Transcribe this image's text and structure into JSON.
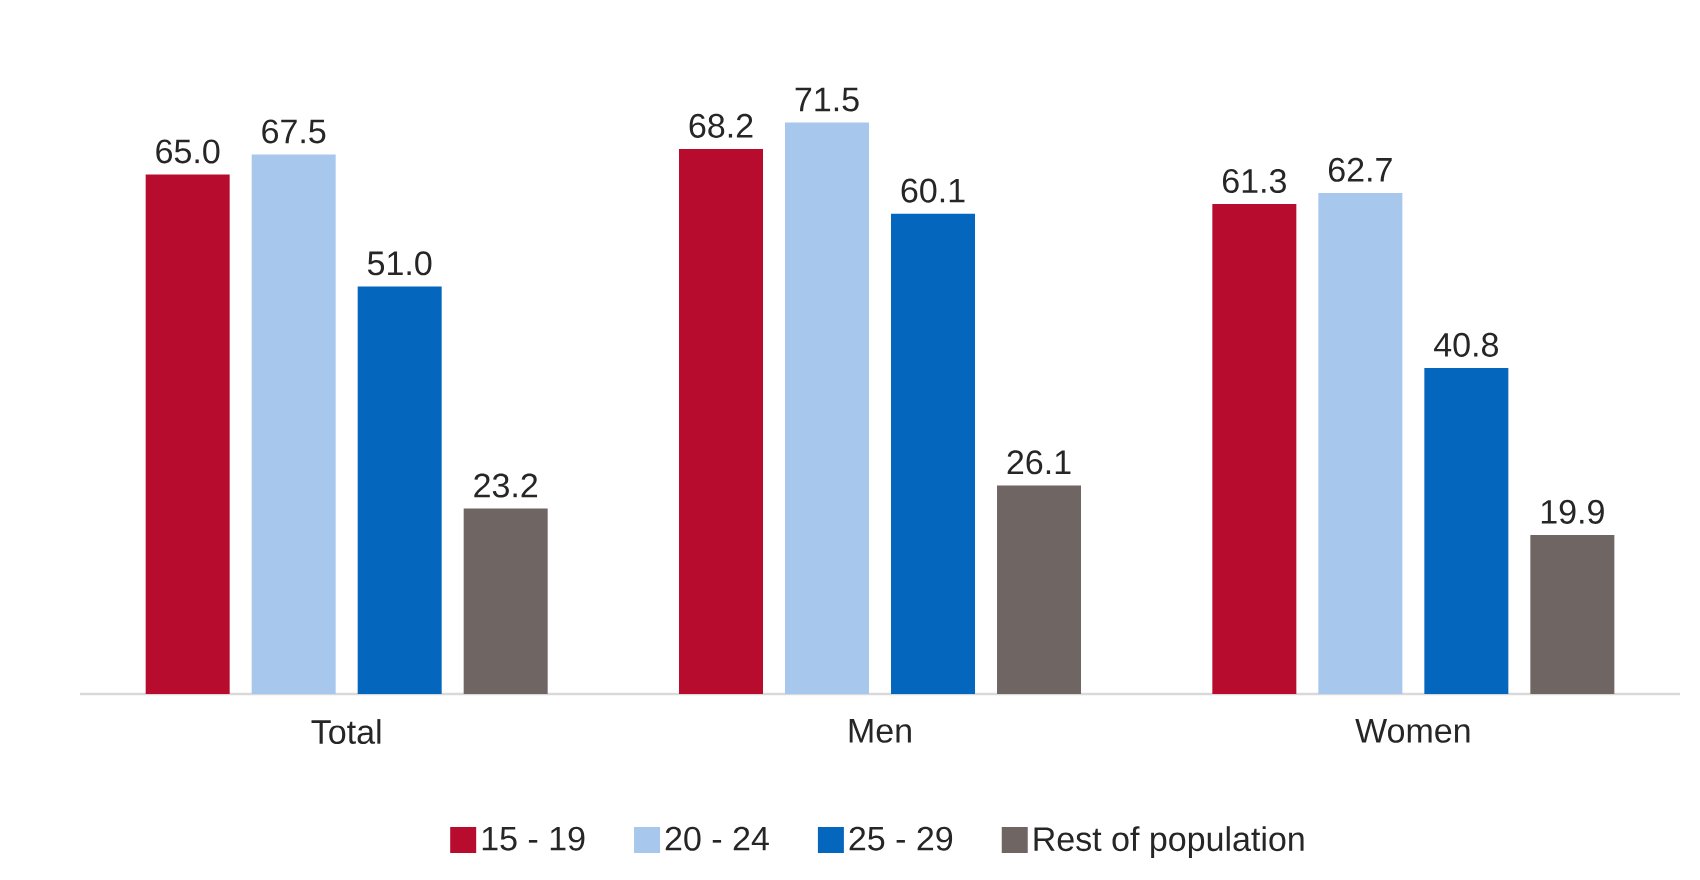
{
  "chart_data": {
    "type": "bar",
    "categories": [
      "Total",
      "Men",
      "Women"
    ],
    "series": [
      {
        "name": "15 - 19",
        "color": "#b70c2e",
        "values": [
          65.0,
          68.2,
          61.3
        ],
        "value_labels": [
          "65.0",
          "68.2",
          "61.3"
        ]
      },
      {
        "name": "20 - 24",
        "color": "#a8c7ec",
        "values": [
          67.5,
          71.5,
          62.7
        ],
        "value_labels": [
          "67.5",
          "71.5",
          "62.7"
        ]
      },
      {
        "name": "25 - 29",
        "color": "#0566be",
        "values": [
          51.0,
          60.1,
          40.8
        ],
        "value_labels": [
          "51.0",
          "60.1",
          "40.8"
        ]
      },
      {
        "name": "Rest of population",
        "color": "#6f6562",
        "values": [
          23.2,
          26.1,
          19.9
        ],
        "value_labels": [
          "23.2",
          "26.1",
          "19.9"
        ]
      }
    ],
    "legend": "bottom"
  }
}
